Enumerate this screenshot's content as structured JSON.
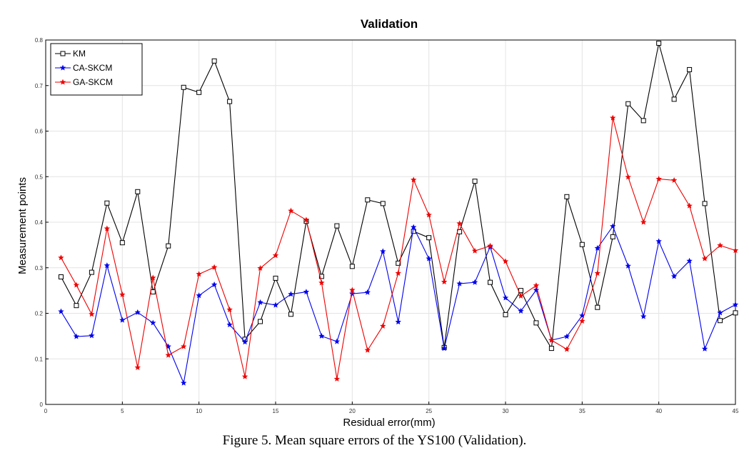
{
  "caption": "Figure 5. Mean square errors of the YS100 (Validation).",
  "chart_data": {
    "type": "line",
    "title": "Validation",
    "xlabel": "Residual error(mm)",
    "ylabel": "Measurement points",
    "xlim": [
      0,
      45
    ],
    "ylim": [
      0,
      0.8
    ],
    "xticks": [
      0,
      5,
      10,
      15,
      20,
      25,
      30,
      35,
      40,
      45
    ],
    "yticks": [
      0,
      0.1,
      0.2,
      0.3,
      0.4,
      0.5,
      0.6,
      0.7,
      0.8
    ],
    "ytick_labels": [
      "0",
      "0.1",
      "0.2",
      "0.3",
      "0.4",
      "0.5",
      "0.6",
      "0.7",
      "0.8"
    ],
    "grid": true,
    "legend_position": "top-left",
    "x": [
      1,
      2,
      3,
      4,
      5,
      6,
      7,
      8,
      9,
      10,
      11,
      12,
      13,
      14,
      15,
      16,
      17,
      18,
      19,
      20,
      21,
      22,
      23,
      24,
      25,
      26,
      27,
      28,
      29,
      30,
      31,
      32,
      33,
      34,
      35,
      36,
      37,
      38,
      39,
      40,
      41,
      42,
      43,
      44,
      45
    ],
    "series": [
      {
        "name": "KM",
        "color": "#000000",
        "marker": "square",
        "values": [
          0.28,
          0.217,
          0.29,
          0.442,
          0.355,
          0.467,
          0.247,
          0.348,
          0.696,
          0.685,
          0.754,
          0.665,
          0.143,
          0.182,
          0.277,
          0.198,
          0.402,
          0.281,
          0.392,
          0.303,
          0.449,
          0.441,
          0.31,
          0.38,
          0.366,
          0.125,
          0.379,
          0.49,
          0.268,
          0.197,
          0.25,
          0.179,
          0.123,
          0.456,
          0.351,
          0.213,
          0.368,
          0.66,
          0.623,
          0.793,
          0.67,
          0.735,
          0.441,
          0.184,
          0.201
        ]
      },
      {
        "name": "CA-SKCM",
        "color": "#0000ee",
        "marker": "star",
        "values": [
          0.204,
          0.149,
          0.151,
          0.305,
          0.185,
          0.202,
          0.179,
          0.127,
          0.047,
          0.239,
          0.263,
          0.175,
          0.137,
          0.224,
          0.218,
          0.242,
          0.247,
          0.15,
          0.138,
          0.243,
          0.246,
          0.336,
          0.181,
          0.389,
          0.32,
          0.123,
          0.265,
          0.268,
          0.346,
          0.234,
          0.205,
          0.251,
          0.141,
          0.149,
          0.195,
          0.343,
          0.391,
          0.304,
          0.193,
          0.358,
          0.281,
          0.315,
          0.122,
          0.201,
          0.219
        ]
      },
      {
        "name": "GA-SKCM",
        "color": "#ee0000",
        "marker": "star",
        "values": [
          0.322,
          0.262,
          0.198,
          0.386,
          0.241,
          0.081,
          0.278,
          0.108,
          0.127,
          0.286,
          0.301,
          0.208,
          0.061,
          0.299,
          0.327,
          0.425,
          0.405,
          0.267,
          0.056,
          0.251,
          0.119,
          0.172,
          0.288,
          0.493,
          0.416,
          0.269,
          0.397,
          0.337,
          0.348,
          0.314,
          0.238,
          0.261,
          0.141,
          0.121,
          0.183,
          0.288,
          0.629,
          0.499,
          0.4,
          0.495,
          0.492,
          0.436,
          0.32,
          0.349,
          0.338
        ]
      }
    ]
  }
}
